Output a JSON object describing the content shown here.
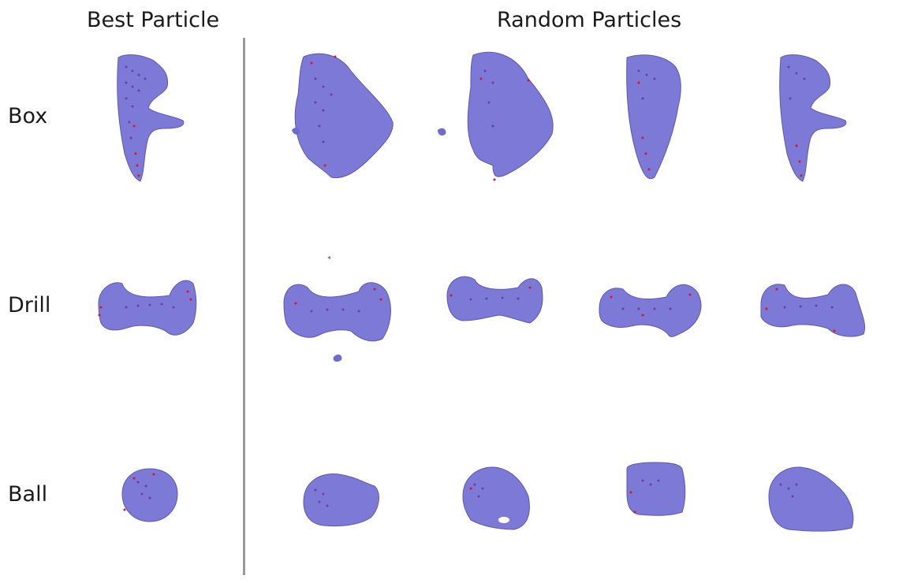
{
  "columns": {
    "best": "Best Particle",
    "random": "Random Particles"
  },
  "rows": [
    {
      "label": "Box"
    },
    {
      "label": "Drill"
    },
    {
      "label": "Ball"
    }
  ],
  "colors": {
    "mesh": "#6e6cd2",
    "mesh_edge": "#5a58b8",
    "points_purple": "#6a3fa0",
    "points_red": "#e0141e",
    "divider": "#999999"
  }
}
